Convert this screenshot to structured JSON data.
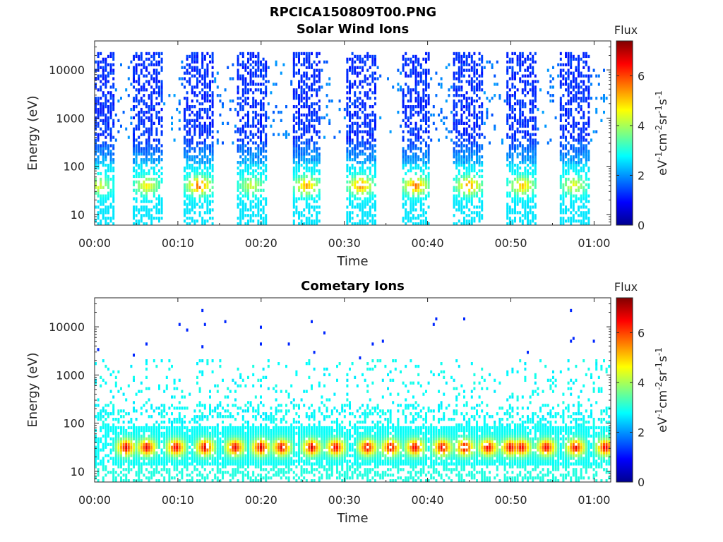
{
  "figure": {
    "title": "RPCICA150809T00.PNG"
  },
  "chart_data": [
    {
      "type": "heatmap",
      "title": "Solar Wind Ions",
      "xlabel": "Time",
      "ylabel": "Energy (eV)",
      "y_scale": "log",
      "x_ticks": [
        "00:00",
        "00:10",
        "00:20",
        "00:30",
        "00:40",
        "00:50",
        "01:00"
      ],
      "x_range_minutes": [
        0,
        62
      ],
      "y_ticks": [
        "10",
        "100",
        "1000",
        "10000"
      ],
      "y_range": [
        6,
        40000
      ],
      "colorbar": {
        "label": "Flux",
        "unit_label": "eV-1cm-2sr-1s-1",
        "ticks": [
          "0",
          "2",
          "4",
          "6"
        ],
        "range": [
          0,
          7.4
        ],
        "colormap": "jet"
      },
      "grid": false,
      "bursts_minutes": [
        0.5,
        6.3,
        12.6,
        18.9,
        25.5,
        32.0,
        38.6,
        45.0,
        51.4,
        57.6
      ],
      "peak_energy_eV": 40,
      "peak_flux": [
        4.5,
        4.8,
        6.0,
        4.4,
        5.4,
        5.7,
        5.8,
        5.6,
        5.2,
        4.6
      ],
      "background_energy_range_eV": [
        300,
        15000
      ],
      "background_flux": 1.5
    },
    {
      "type": "heatmap",
      "title": "Cometary Ions",
      "xlabel": "Time",
      "ylabel": "Energy (eV)",
      "y_scale": "log",
      "x_ticks": [
        "00:00",
        "00:10",
        "00:20",
        "00:30",
        "00:40",
        "00:50",
        "01:00"
      ],
      "x_range_minutes": [
        0,
        62
      ],
      "y_ticks": [
        "10",
        "100",
        "1000",
        "10000"
      ],
      "y_range": [
        6,
        40000
      ],
      "colorbar": {
        "label": "Flux",
        "unit_label": "eV-1cm-2sr-1s-1",
        "ticks": [
          "0",
          "2",
          "4",
          "6"
        ],
        "range": [
          0,
          7.4
        ],
        "colormap": "jet"
      },
      "grid": false,
      "band_energy_range_eV": [
        15,
        80
      ],
      "band_peak_flux": 6.8,
      "spikes_minutes": [
        3.8,
        6.3,
        9.8,
        13.3,
        16.9,
        20.0,
        22.5,
        26.1,
        29.0,
        32.8,
        35.6,
        38.5,
        41.8,
        44.5,
        47.3,
        50.0,
        51.3,
        54.3,
        57.8,
        61.4
      ],
      "scatter_energy_range_eV": [
        200,
        1500
      ],
      "scatter_flux": 2.6
    }
  ]
}
